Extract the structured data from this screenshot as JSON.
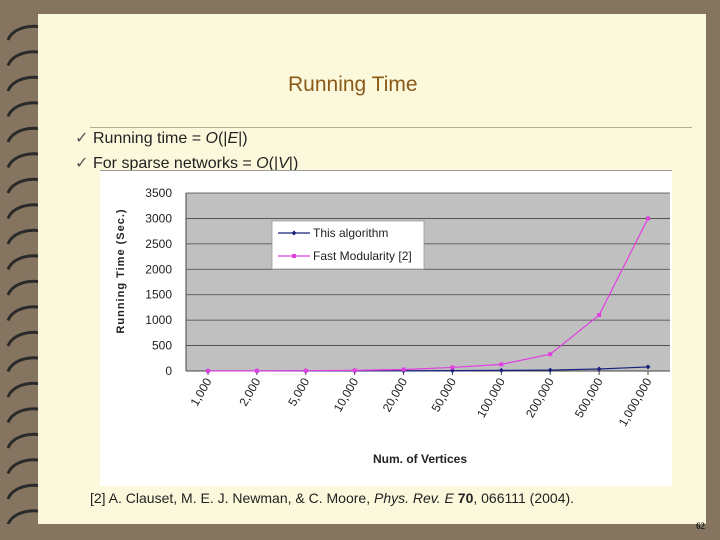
{
  "slide": {
    "title": "Running Time",
    "bullets": [
      {
        "text": "Running time = ",
        "expr_italic": "O",
        "expr_rest": "(|",
        "var": "E",
        "close": "|)"
      },
      {
        "text": "For sparse networks = ",
        "expr_italic": "O",
        "expr_rest": "(|",
        "var": "V",
        "close": "|)"
      }
    ],
    "bullet_check": "✓",
    "reference": {
      "prefix": "[2] A. Clauset, M. E. J. Newman, & C. Moore, ",
      "journal": "Phys. Rev. E",
      "volume": "70",
      "rest": ", 066111 (2004)."
    },
    "page_number": "62"
  },
  "colors": {
    "background": "#857560",
    "slide": "#fbf8dc",
    "title": "#8a5a18",
    "plot_area": "#c0c0c0",
    "series_algorithm": "#1a237e",
    "series_fast": "#e040e0"
  },
  "chart_data": {
    "type": "line",
    "categories": [
      "1,000",
      "2,000",
      "5,000",
      "10,000",
      "20,000",
      "50,000",
      "100,000",
      "200,000",
      "500,000",
      "1,000,000"
    ],
    "series": [
      {
        "name": "This algorithm",
        "values": [
          1,
          1,
          2,
          3,
          5,
          8,
          12,
          18,
          40,
          80
        ]
      },
      {
        "name": "Fast Modularity [2]",
        "values": [
          2,
          3,
          6,
          12,
          30,
          70,
          130,
          330,
          1100,
          3000
        ]
      }
    ],
    "xlabel": "Num. of Vertices",
    "ylabel": "Running Time (Sec.)",
    "ylim": [
      0,
      3500
    ],
    "yticks": [
      0,
      500,
      1000,
      1500,
      2000,
      2500,
      3000,
      3500
    ],
    "grid": true,
    "legend_position": "top-left"
  }
}
